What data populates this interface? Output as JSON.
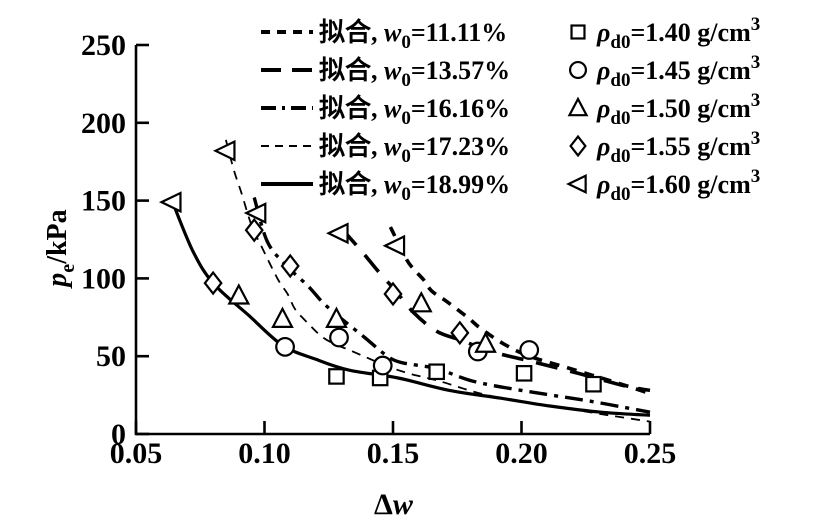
{
  "figure": {
    "background": "#ffffff",
    "ink_color": "#000000"
  },
  "chart_data": {
    "type": "line",
    "title": "",
    "xlabel": {
      "pre": "Δ",
      "sym": "w"
    },
    "ylabel": {
      "sym": "p",
      "sub": "e",
      "post": "/kPa"
    },
    "xlim": [
      0.05,
      0.25
    ],
    "ylim": [
      0,
      250
    ],
    "xticks": [
      "0.05",
      "0.10",
      "0.15",
      "0.20",
      "0.25"
    ],
    "yticks": [
      "0",
      "50",
      "100",
      "150",
      "200",
      "250"
    ],
    "grid": false,
    "legend_position": "top",
    "fit_curves": [
      {
        "id": "fit-w0-11.11",
        "label": {
          "pre": "拟合, ",
          "sym": "w",
          "sub": "0",
          "post": "=11.11%"
        },
        "w0_percent": 11.11,
        "style": "dash-bold-short",
        "points": [
          [
            0.149,
            133
          ],
          [
            0.155,
            113
          ],
          [
            0.158,
            106
          ],
          [
            0.162,
            99
          ],
          [
            0.165,
            92
          ],
          [
            0.171,
            85
          ],
          [
            0.179,
            75
          ],
          [
            0.184,
            68
          ],
          [
            0.193,
            58
          ],
          [
            0.203,
            50
          ],
          [
            0.219,
            42
          ],
          [
            0.237,
            33
          ],
          [
            0.25,
            26
          ]
        ]
      },
      {
        "id": "fit-w0-13.57",
        "label": {
          "pre": "拟合, ",
          "sym": "w",
          "sub": "0",
          "post": "=13.57%"
        },
        "w0_percent": 13.57,
        "style": "dash-bold-long",
        "points": [
          [
            0.13,
            132
          ],
          [
            0.138,
            117
          ],
          [
            0.144,
            105
          ],
          [
            0.151,
            92
          ],
          [
            0.158,
            78
          ],
          [
            0.167,
            66
          ],
          [
            0.177,
            60
          ],
          [
            0.188,
            53
          ],
          [
            0.203,
            47
          ],
          [
            0.222,
            39
          ],
          [
            0.24,
            31
          ],
          [
            0.25,
            28
          ]
        ]
      },
      {
        "id": "fit-w0-16.16",
        "label": {
          "pre": "拟合, ",
          "sym": "w",
          "sub": "0",
          "post": "=16.16%"
        },
        "w0_percent": 16.16,
        "style": "dashdot-bold",
        "points": [
          [
            0.096,
            152
          ],
          [
            0.101,
            124
          ],
          [
            0.108,
            109
          ],
          [
            0.117,
            95
          ],
          [
            0.123,
            84
          ],
          [
            0.13,
            74
          ],
          [
            0.139,
            62
          ],
          [
            0.147,
            51
          ],
          [
            0.153,
            46
          ],
          [
            0.167,
            42
          ],
          [
            0.181,
            34
          ],
          [
            0.2,
            28
          ],
          [
            0.227,
            21
          ],
          [
            0.25,
            14
          ]
        ]
      },
      {
        "id": "fit-w0-17.23",
        "label": {
          "pre": "拟合, ",
          "sym": "w",
          "sub": "0",
          "post": "=17.23%"
        },
        "w0_percent": 17.23,
        "style": "dash-thin",
        "points": [
          [
            0.085,
            189
          ],
          [
            0.088,
            170
          ],
          [
            0.091,
            155
          ],
          [
            0.095,
            134
          ],
          [
            0.099,
            120
          ],
          [
            0.105,
            100
          ],
          [
            0.109,
            90
          ],
          [
            0.112,
            80
          ],
          [
            0.117,
            71
          ],
          [
            0.122,
            63
          ],
          [
            0.127,
            58
          ],
          [
            0.133,
            54
          ],
          [
            0.14,
            49
          ],
          [
            0.147,
            44
          ],
          [
            0.156,
            39
          ],
          [
            0.168,
            34
          ],
          [
            0.184,
            26
          ],
          [
            0.199,
            21
          ],
          [
            0.219,
            16
          ],
          [
            0.234,
            12
          ],
          [
            0.25,
            8
          ]
        ]
      },
      {
        "id": "fit-w0-18.99",
        "label": {
          "pre": "拟合, ",
          "sym": "w",
          "sub": "0",
          "post": "=18.99%"
        },
        "w0_percent": 18.99,
        "style": "solid",
        "points": [
          [
            0.064,
            150
          ],
          [
            0.072,
            118
          ],
          [
            0.08,
            97
          ],
          [
            0.094,
            76
          ],
          [
            0.107,
            57
          ],
          [
            0.12,
            48
          ],
          [
            0.133,
            41
          ],
          [
            0.152,
            36
          ],
          [
            0.172,
            28
          ],
          [
            0.192,
            23
          ],
          [
            0.211,
            18
          ],
          [
            0.231,
            14
          ],
          [
            0.25,
            12
          ]
        ]
      }
    ],
    "scatter_series": [
      {
        "id": "density-1.40",
        "label": {
          "sym": "ρ",
          "sub": "d0",
          "post": "=1.40 g/cm",
          "sup": "3"
        },
        "density_g_cm3": 1.4,
        "marker": "square",
        "points": [
          [
            0.128,
            37
          ],
          [
            0.145,
            36
          ],
          [
            0.167,
            40
          ],
          [
            0.201,
            39
          ],
          [
            0.228,
            32
          ]
        ]
      },
      {
        "id": "density-1.45",
        "label": {
          "sym": "ρ",
          "sub": "d0",
          "post": "=1.45 g/cm",
          "sup": "3"
        },
        "density_g_cm3": 1.45,
        "marker": "circle",
        "points": [
          [
            0.108,
            56
          ],
          [
            0.129,
            62
          ],
          [
            0.146,
            44
          ],
          [
            0.183,
            53
          ],
          [
            0.203,
            54
          ]
        ]
      },
      {
        "id": "density-1.50",
        "label": {
          "sym": "ρ",
          "sub": "d0",
          "post": "=1.50 g/cm",
          "sup": "3"
        },
        "density_g_cm3": 1.5,
        "marker": "triangle-up",
        "points": [
          [
            0.09,
            89
          ],
          [
            0.107,
            74
          ],
          [
            0.128,
            74
          ],
          [
            0.161,
            84
          ],
          [
            0.186,
            58
          ]
        ]
      },
      {
        "id": "density-1.55",
        "label": {
          "sym": "ρ",
          "sub": "d0",
          "post": "=1.55 g/cm",
          "sup": "3"
        },
        "density_g_cm3": 1.55,
        "marker": "diamond",
        "points": [
          [
            0.08,
            97
          ],
          [
            0.096,
            131
          ],
          [
            0.11,
            108
          ],
          [
            0.15,
            90
          ],
          [
            0.176,
            65
          ]
        ]
      },
      {
        "id": "density-1.60",
        "label": {
          "sym": "ρ",
          "sub": "d0",
          "post": "=1.60 g/cm",
          "sup": "3"
        },
        "density_g_cm3": 1.6,
        "marker": "triangle-left",
        "points": [
          [
            0.064,
            149
          ],
          [
            0.085,
            182
          ],
          [
            0.097,
            142
          ],
          [
            0.129,
            129
          ],
          [
            0.151,
            121
          ]
        ]
      }
    ]
  }
}
